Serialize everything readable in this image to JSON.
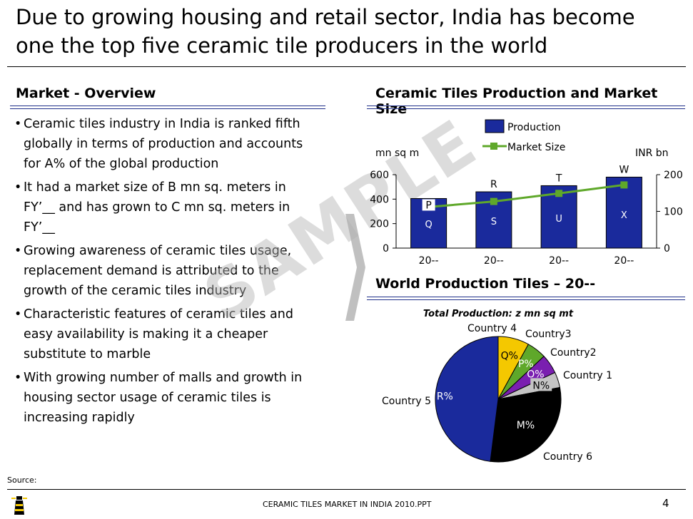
{
  "slide": {
    "title": "Due to growing housing and retail sector, India has become one the top five ceramic tile producers in the world",
    "page_number": "4",
    "footer_file": "CERAMIC TILES MARKET IN INDIA 2010.PPT",
    "source_label": "Source:",
    "watermark": "SAMPLE"
  },
  "overview": {
    "heading": "Market - Overview",
    "bullets": [
      "Ceramic tiles industry in India is ranked fifth globally in terms of production and accounts for A% of the global production",
      "It had a market size of B mn sq. meters in FY’__ and has grown to  C mn sq. meters in FY’__",
      "Growing awareness of ceramic tiles usage, replacement demand is attributed to the growth of the ceramic tiles industry",
      "Characteristic features of ceramic tiles and easy availability is making it a cheaper substitute to marble",
      "With growing number of malls and growth in housing sector usage of ceramic tiles is increasing rapidly"
    ]
  },
  "colors": {
    "navy": "#1a2a9c",
    "green": "#5fa82a",
    "yellow": "#f4c800",
    "purple": "#7a1fb0",
    "gray": "#c4c4c4",
    "black": "#000000",
    "rule": "#1f2f8a"
  },
  "chart_data": [
    {
      "type": "bar",
      "title": "Ceramic Tiles Production and Market Size",
      "categories": [
        "20--",
        "20--",
        "20--",
        "20--"
      ],
      "left_axis_label": "mn sq m",
      "right_axis_label": "INR bn",
      "left_ylim": [
        0,
        600
      ],
      "left_ticks": [
        "0",
        "200",
        "400",
        "600"
      ],
      "right_ylim": [
        0,
        200
      ],
      "right_ticks": [
        "0",
        "100",
        "200"
      ],
      "legend_position": "top",
      "series": [
        {
          "name": "Production",
          "kind": "bar",
          "axis": "left",
          "values": [
            405,
            460,
            510,
            580
          ],
          "labels": [
            "Q",
            "S",
            "U",
            "X"
          ]
        },
        {
          "name": "Market Size",
          "kind": "line",
          "axis": "right",
          "values": [
            112,
            127,
            149,
            172
          ],
          "labels": [
            "P",
            "R",
            "T",
            "W"
          ]
        }
      ]
    },
    {
      "type": "pie",
      "title": "World Production Tiles – 20--",
      "subtitle": "Total Production: z mn sq mt",
      "slices": [
        {
          "name": "Country 4",
          "label": "Q%",
          "value": 8,
          "color": "#f4c800"
        },
        {
          "name": "Country3",
          "label": "P%",
          "value": 5,
          "color": "#5fa82a"
        },
        {
          "name": "Country2",
          "label": "O%",
          "value": 5,
          "color": "#7a1fb0"
        },
        {
          "name": "Country 1",
          "label": "N%",
          "value": 4,
          "color": "#c4c4c4"
        },
        {
          "name": "Country 6",
          "label": "M%",
          "value": 30,
          "color": "#000000"
        },
        {
          "name": "Country 5",
          "label": "R%",
          "value": 48,
          "color": "#1a2a9c"
        }
      ]
    }
  ]
}
